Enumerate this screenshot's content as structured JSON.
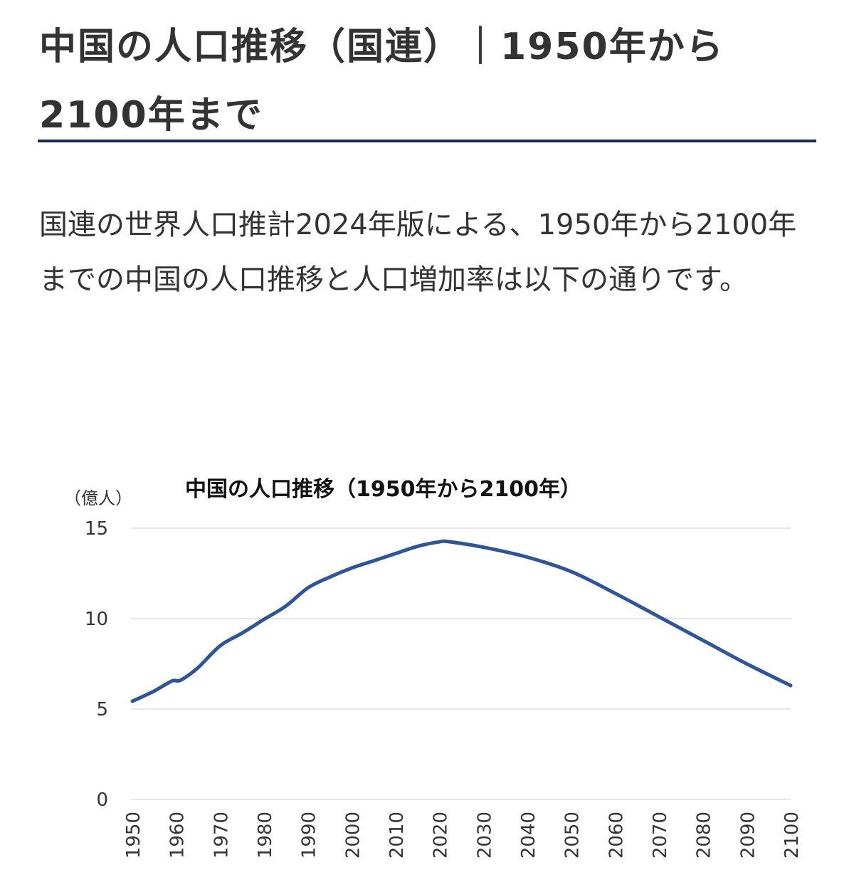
{
  "title": "中国の人口推移（国連）｜1950年から2100年まで",
  "lead": "国連の世界人口推計2024年版による、1950年から2100年までの中国の人口推移と人口増加率は以下の通りです。",
  "chart_data": {
    "type": "line",
    "title": "中国の人口推移（1950年から2100年）",
    "ylabel": "（億人）",
    "xlabel": "",
    "ylim": [
      0,
      15
    ],
    "yticks": [
      "0",
      "5",
      "10",
      "15"
    ],
    "xticks": [
      "1950",
      "1960",
      "1970",
      "1980",
      "1990",
      "2000",
      "2010",
      "2020",
      "2030",
      "2040",
      "2050",
      "2060",
      "2070",
      "2080",
      "2090",
      "2100"
    ],
    "xlim": [
      1950,
      2100
    ],
    "grid": true,
    "color": "#2f5597",
    "series": [
      {
        "name": "中国の人口",
        "x": [
          1950,
          1955,
          1959,
          1961,
          1965,
          1970,
          1975,
          1980,
          1985,
          1990,
          1995,
          2000,
          2005,
          2010,
          2015,
          2020,
          2022,
          2030,
          2040,
          2050,
          2060,
          2070,
          2080,
          2090,
          2100
        ],
        "values": [
          5.43,
          6.0,
          6.55,
          6.6,
          7.3,
          8.5,
          9.2,
          9.96,
          10.7,
          11.7,
          12.3,
          12.8,
          13.2,
          13.6,
          14.0,
          14.25,
          14.26,
          13.95,
          13.4,
          12.6,
          11.4,
          10.1,
          8.8,
          7.5,
          6.3
        ]
      }
    ]
  }
}
